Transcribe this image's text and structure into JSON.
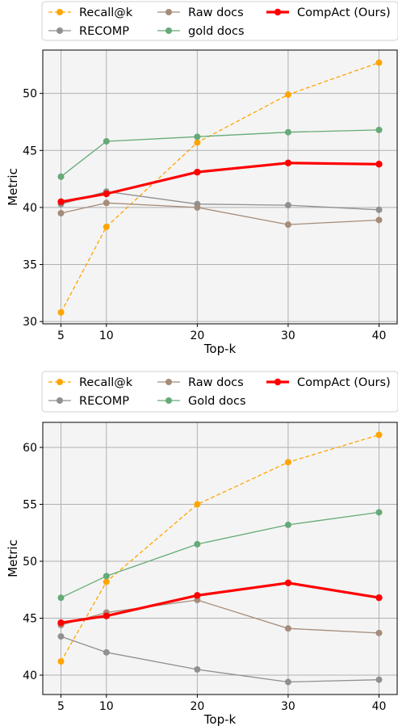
{
  "chart_data": [
    {
      "type": "line",
      "xlabel": "Top-k",
      "ylabel": "Metric",
      "x": [
        5,
        10,
        20,
        30,
        40
      ],
      "xticks": [
        "5",
        "10",
        "20",
        "30",
        "40"
      ],
      "xlim": [
        3,
        42
      ],
      "ylim": [
        29.8,
        53.8
      ],
      "yticks": [
        "30",
        "35",
        "40",
        "45",
        "50"
      ],
      "grid": true,
      "legend_position": "top",
      "series": [
        {
          "name": "Recall@k",
          "color": "#FFA500",
          "style": "dashed",
          "values": [
            30.8,
            38.3,
            45.7,
            49.9,
            52.7
          ]
        },
        {
          "name": "RECOMP",
          "color": "#909090",
          "style": "solid",
          "values": [
            40.3,
            41.4,
            40.3,
            40.2,
            39.8
          ]
        },
        {
          "name": "Raw docs",
          "color": "#A58C7A",
          "style": "solid",
          "values": [
            39.5,
            40.4,
            40.0,
            38.5,
            38.9
          ]
        },
        {
          "name": "gold docs",
          "color": "#66AA77",
          "style": "solid",
          "values": [
            42.7,
            45.8,
            46.2,
            46.6,
            46.8
          ]
        },
        {
          "name": "CompAct (Ours)",
          "color": "#FF0000",
          "style": "bold",
          "values": [
            40.5,
            41.2,
            43.1,
            43.9,
            43.8
          ]
        }
      ]
    },
    {
      "type": "line",
      "xlabel": "Top-k",
      "ylabel": "Metric",
      "x": [
        5,
        10,
        20,
        30,
        40
      ],
      "xticks": [
        "5",
        "10",
        "20",
        "30",
        "40"
      ],
      "xlim": [
        3,
        42
      ],
      "ylim": [
        38.3,
        62.2
      ],
      "yticks": [
        "40",
        "45",
        "50",
        "55",
        "60"
      ],
      "grid": true,
      "legend_position": "top",
      "series": [
        {
          "name": "Recall@k",
          "color": "#FFA500",
          "style": "dashed",
          "values": [
            41.2,
            48.2,
            55.0,
            58.7,
            61.1
          ]
        },
        {
          "name": "RECOMP",
          "color": "#909090",
          "style": "solid",
          "values": [
            43.4,
            42.0,
            40.5,
            39.4,
            39.6
          ]
        },
        {
          "name": "Raw docs",
          "color": "#A58C7A",
          "style": "solid",
          "values": [
            44.4,
            45.5,
            46.6,
            44.1,
            43.7
          ]
        },
        {
          "name": "Gold docs",
          "color": "#66AA77",
          "style": "solid",
          "values": [
            46.8,
            48.7,
            51.5,
            53.2,
            54.3
          ]
        },
        {
          "name": "CompAct (Ours)",
          "color": "#FF0000",
          "style": "bold",
          "values": [
            44.6,
            45.2,
            47.0,
            48.1,
            46.8
          ]
        }
      ]
    }
  ]
}
